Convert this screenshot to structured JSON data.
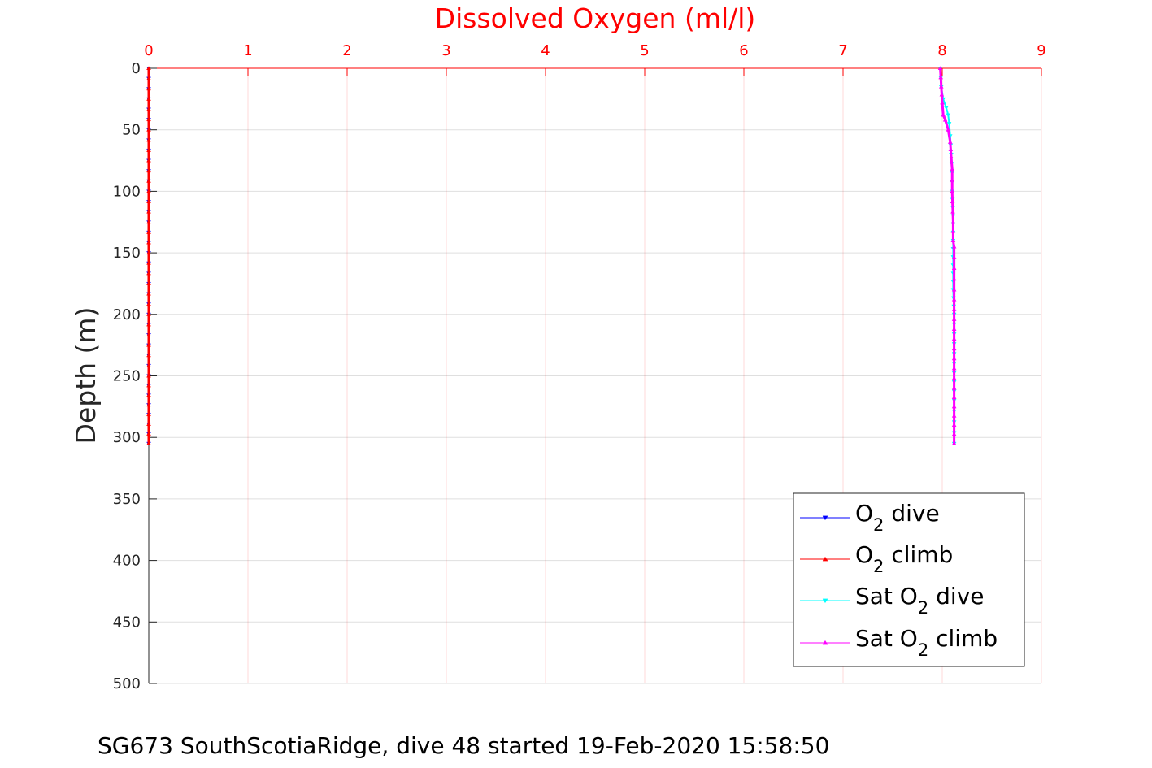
{
  "chart_data": {
    "type": "line",
    "title": "Dissolved Oxygen (ml/l)",
    "xlabel": "",
    "ylabel": "Depth (m)",
    "caption": "SG673 SouthScotiaRidge, dive 48 started 19-Feb-2020 15:58:50",
    "xlim": [
      0,
      9
    ],
    "ylim": [
      0,
      500
    ],
    "y_reversed": true,
    "x_axis_position": "top",
    "xticks": [
      0,
      1,
      2,
      3,
      4,
      5,
      6,
      7,
      8,
      9
    ],
    "yticks": [
      0,
      50,
      100,
      150,
      200,
      250,
      300,
      350,
      400,
      450,
      500
    ],
    "grid": true,
    "legend_position": "bottom-right",
    "series": [
      {
        "name_parts": [
          "O",
          "2",
          " dive"
        ],
        "color": "#0000ff",
        "marker": "triangle-down",
        "points": [
          [
            0.0,
            0
          ],
          [
            0.0,
            50
          ],
          [
            0.0,
            100
          ],
          [
            0.0,
            150
          ],
          [
            0.0,
            200
          ],
          [
            0.0,
            250
          ],
          [
            0.0,
            305
          ]
        ]
      },
      {
        "name_parts": [
          "O",
          "2",
          " climb"
        ],
        "color": "#ff0000",
        "marker": "triangle-up",
        "points": [
          [
            0.0,
            0
          ],
          [
            0.0,
            50
          ],
          [
            0.0,
            100
          ],
          [
            0.0,
            150
          ],
          [
            0.0,
            200
          ],
          [
            0.0,
            250
          ],
          [
            0.0,
            305
          ]
        ]
      },
      {
        "name_parts": [
          "Sat O",
          "2",
          " dive"
        ],
        "color": "#00ffff",
        "marker": "triangle-down",
        "points": [
          [
            7.98,
            0
          ],
          [
            7.99,
            15
          ],
          [
            8.01,
            25
          ],
          [
            8.04,
            32
          ],
          [
            8.06,
            38
          ],
          [
            8.07,
            45
          ],
          [
            8.08,
            55
          ],
          [
            8.09,
            70
          ],
          [
            8.1,
            85
          ],
          [
            8.1,
            100
          ],
          [
            8.11,
            120
          ],
          [
            8.11,
            140
          ],
          [
            8.11,
            160
          ],
          [
            8.11,
            180
          ],
          [
            8.12,
            200
          ],
          [
            8.12,
            240
          ],
          [
            8.12,
            270
          ],
          [
            8.12,
            305
          ]
        ]
      },
      {
        "name_parts": [
          "Sat O",
          "2",
          " climb"
        ],
        "color": "#ff00ff",
        "marker": "triangle-up",
        "points": [
          [
            7.98,
            0
          ],
          [
            7.99,
            15
          ],
          [
            8.0,
            28
          ],
          [
            8.01,
            38
          ],
          [
            8.03,
            42
          ],
          [
            8.06,
            50
          ],
          [
            8.08,
            60
          ],
          [
            8.09,
            72
          ],
          [
            8.1,
            82
          ],
          [
            8.1,
            100
          ],
          [
            8.11,
            125
          ],
          [
            8.11,
            140
          ],
          [
            8.12,
            145
          ],
          [
            8.12,
            180
          ],
          [
            8.12,
            220
          ],
          [
            8.12,
            260
          ],
          [
            8.12,
            305
          ]
        ]
      }
    ]
  }
}
